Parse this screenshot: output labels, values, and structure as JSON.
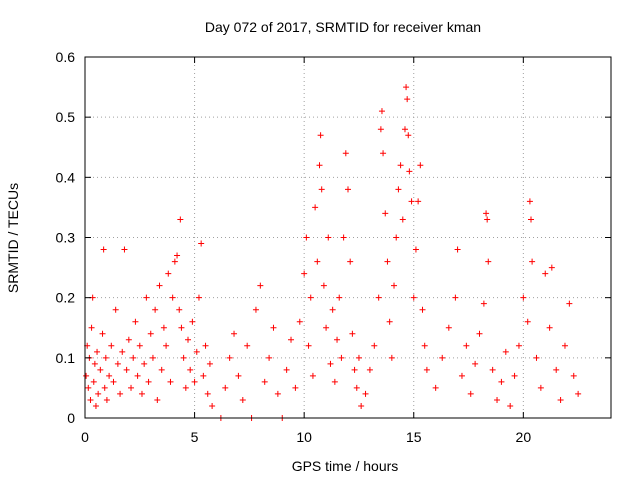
{
  "chart_data": {
    "type": "scatter",
    "title": "Day 072 of 2017, SRMTID for receiver kman",
    "xlabel": "GPS time / hours",
    "ylabel": "SRMTID / TECUs",
    "xlim": [
      0,
      24
    ],
    "ylim": [
      0,
      0.6
    ],
    "x_ticks": [
      0,
      5,
      10,
      15,
      20
    ],
    "y_ticks": [
      0,
      0.1,
      0.2,
      0.3,
      0.4,
      0.5,
      0.6
    ],
    "x_tick_labels": [
      "0",
      "5",
      "10",
      "15",
      "20"
    ],
    "y_tick_labels": [
      "0",
      "0.1",
      "0.2",
      "0.3",
      "0.4",
      "0.5",
      "0.6"
    ],
    "grid": true,
    "legend": "none",
    "marker": "plus",
    "color": "#ff0000",
    "series": [
      {
        "name": "SRMTID",
        "points": [
          [
            0.05,
            0.07
          ],
          [
            0.1,
            0.12
          ],
          [
            0.15,
            0.05
          ],
          [
            0.2,
            0.1
          ],
          [
            0.25,
            0.03
          ],
          [
            0.3,
            0.15
          ],
          [
            0.35,
            0.2
          ],
          [
            0.4,
            0.06
          ],
          [
            0.45,
            0.09
          ],
          [
            0.5,
            0.02
          ],
          [
            0.55,
            0.11
          ],
          [
            0.6,
            0.04
          ],
          [
            0.7,
            0.08
          ],
          [
            0.8,
            0.14
          ],
          [
            0.85,
            0.28
          ],
          [
            0.9,
            0.05
          ],
          [
            0.95,
            0.1
          ],
          [
            1.0,
            0.03
          ],
          [
            1.1,
            0.07
          ],
          [
            1.2,
            0.12
          ],
          [
            1.3,
            0.06
          ],
          [
            1.4,
            0.18
          ],
          [
            1.5,
            0.09
          ],
          [
            1.6,
            0.04
          ],
          [
            1.7,
            0.11
          ],
          [
            1.8,
            0.28
          ],
          [
            1.9,
            0.08
          ],
          [
            2.0,
            0.13
          ],
          [
            2.1,
            0.05
          ],
          [
            2.2,
            0.1
          ],
          [
            2.3,
            0.16
          ],
          [
            2.4,
            0.07
          ],
          [
            2.5,
            0.12
          ],
          [
            2.6,
            0.04
          ],
          [
            2.7,
            0.09
          ],
          [
            2.8,
            0.2
          ],
          [
            2.9,
            0.06
          ],
          [
            3.0,
            0.14
          ],
          [
            3.1,
            0.1
          ],
          [
            3.2,
            0.18
          ],
          [
            3.3,
            0.03
          ],
          [
            3.4,
            0.22
          ],
          [
            3.5,
            0.08
          ],
          [
            3.6,
            0.15
          ],
          [
            3.7,
            0.12
          ],
          [
            3.8,
            0.24
          ],
          [
            3.9,
            0.06
          ],
          [
            4.0,
            0.2
          ],
          [
            4.1,
            0.26
          ],
          [
            4.2,
            0.27
          ],
          [
            4.3,
            0.18
          ],
          [
            4.35,
            0.33
          ],
          [
            4.4,
            0.15
          ],
          [
            4.5,
            0.1
          ],
          [
            4.6,
            0.05
          ],
          [
            4.7,
            0.13
          ],
          [
            4.8,
            0.08
          ],
          [
            4.9,
            0.16
          ],
          [
            5.0,
            0.06
          ],
          [
            5.1,
            0.11
          ],
          [
            5.2,
            0.2
          ],
          [
            5.3,
            0.29
          ],
          [
            5.4,
            0.07
          ],
          [
            5.5,
            0.12
          ],
          [
            5.6,
            0.04
          ],
          [
            5.7,
            0.09
          ],
          [
            5.8,
            0.02
          ],
          [
            6.2,
            0.0
          ],
          [
            6.4,
            0.05
          ],
          [
            6.6,
            0.1
          ],
          [
            6.8,
            0.14
          ],
          [
            7.0,
            0.07
          ],
          [
            7.2,
            0.03
          ],
          [
            7.4,
            0.12
          ],
          [
            7.6,
            0.0
          ],
          [
            7.8,
            0.18
          ],
          [
            8.0,
            0.22
          ],
          [
            8.2,
            0.06
          ],
          [
            8.4,
            0.1
          ],
          [
            8.6,
            0.15
          ],
          [
            8.8,
            0.04
          ],
          [
            9.0,
            0.0
          ],
          [
            9.2,
            0.08
          ],
          [
            9.4,
            0.13
          ],
          [
            9.6,
            0.05
          ],
          [
            9.8,
            0.16
          ],
          [
            10.0,
            0.24
          ],
          [
            10.1,
            0.3
          ],
          [
            10.2,
            0.12
          ],
          [
            10.3,
            0.2
          ],
          [
            10.4,
            0.07
          ],
          [
            10.5,
            0.35
          ],
          [
            10.6,
            0.26
          ],
          [
            10.7,
            0.42
          ],
          [
            10.75,
            0.47
          ],
          [
            10.8,
            0.38
          ],
          [
            10.9,
            0.22
          ],
          [
            11.0,
            0.15
          ],
          [
            11.1,
            0.3
          ],
          [
            11.2,
            0.09
          ],
          [
            11.3,
            0.18
          ],
          [
            11.4,
            0.06
          ],
          [
            11.5,
            0.13
          ],
          [
            11.6,
            0.2
          ],
          [
            11.7,
            0.1
          ],
          [
            11.8,
            0.3
          ],
          [
            11.9,
            0.44
          ],
          [
            12.0,
            0.38
          ],
          [
            12.1,
            0.26
          ],
          [
            12.2,
            0.14
          ],
          [
            12.3,
            0.08
          ],
          [
            12.4,
            0.05
          ],
          [
            12.5,
            0.1
          ],
          [
            12.6,
            0.02
          ],
          [
            12.8,
            0.04
          ],
          [
            13.0,
            0.08
          ],
          [
            13.2,
            0.12
          ],
          [
            13.4,
            0.2
          ],
          [
            13.5,
            0.48
          ],
          [
            13.55,
            0.51
          ],
          [
            13.6,
            0.44
          ],
          [
            13.7,
            0.34
          ],
          [
            13.8,
            0.26
          ],
          [
            13.9,
            0.16
          ],
          [
            14.0,
            0.1
          ],
          [
            14.1,
            0.22
          ],
          [
            14.2,
            0.3
          ],
          [
            14.3,
            0.38
          ],
          [
            14.4,
            0.42
          ],
          [
            14.5,
            0.33
          ],
          [
            14.6,
            0.48
          ],
          [
            14.65,
            0.55
          ],
          [
            14.7,
            0.53
          ],
          [
            14.75,
            0.47
          ],
          [
            14.8,
            0.41
          ],
          [
            14.9,
            0.36
          ],
          [
            15.0,
            0.2
          ],
          [
            15.1,
            0.28
          ],
          [
            15.2,
            0.36
          ],
          [
            15.3,
            0.42
          ],
          [
            15.4,
            0.18
          ],
          [
            15.5,
            0.12
          ],
          [
            15.6,
            0.08
          ],
          [
            16.0,
            0.05
          ],
          [
            16.3,
            0.1
          ],
          [
            16.6,
            0.15
          ],
          [
            16.9,
            0.2
          ],
          [
            17.0,
            0.28
          ],
          [
            17.2,
            0.07
          ],
          [
            17.4,
            0.12
          ],
          [
            17.6,
            0.04
          ],
          [
            17.8,
            0.09
          ],
          [
            18.0,
            0.14
          ],
          [
            18.2,
            0.19
          ],
          [
            18.3,
            0.34
          ],
          [
            18.35,
            0.33
          ],
          [
            18.4,
            0.26
          ],
          [
            18.6,
            0.08
          ],
          [
            18.8,
            0.03
          ],
          [
            19.0,
            0.06
          ],
          [
            19.2,
            0.11
          ],
          [
            19.4,
            0.02
          ],
          [
            19.6,
            0.07
          ],
          [
            19.8,
            0.12
          ],
          [
            20.0,
            0.2
          ],
          [
            20.2,
            0.16
          ],
          [
            20.3,
            0.36
          ],
          [
            20.35,
            0.33
          ],
          [
            20.4,
            0.26
          ],
          [
            20.6,
            0.1
          ],
          [
            20.8,
            0.05
          ],
          [
            21.0,
            0.24
          ],
          [
            21.2,
            0.15
          ],
          [
            21.3,
            0.25
          ],
          [
            21.5,
            0.08
          ],
          [
            21.7,
            0.03
          ],
          [
            21.9,
            0.12
          ],
          [
            22.1,
            0.19
          ],
          [
            22.3,
            0.07
          ],
          [
            22.5,
            0.04
          ]
        ]
      }
    ]
  }
}
